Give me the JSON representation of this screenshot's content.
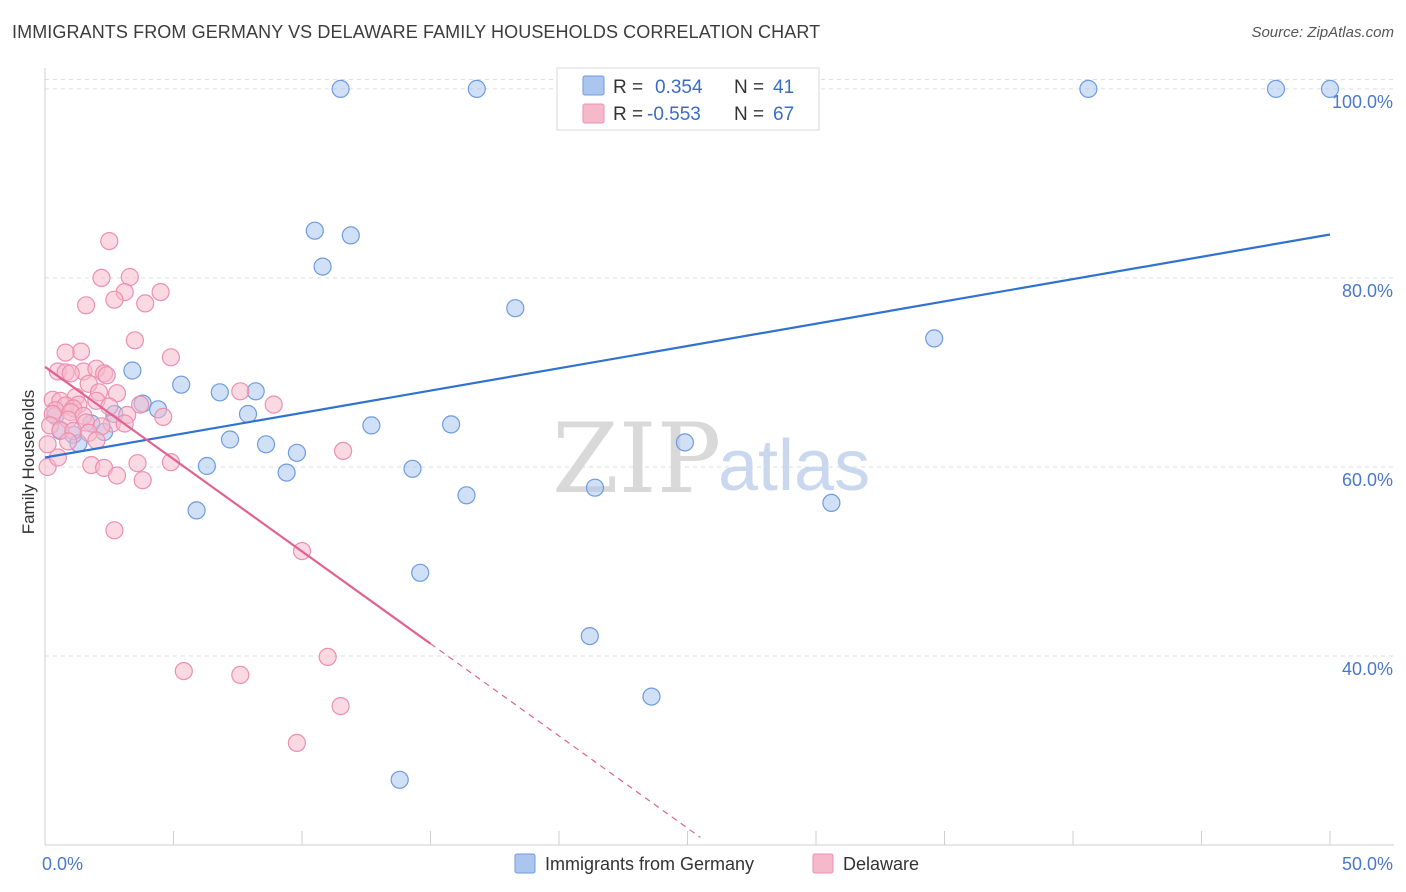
{
  "title": "IMMIGRANTS FROM GERMANY VS DELAWARE FAMILY HOUSEHOLDS CORRELATION CHART",
  "source": "Source: ZipAtlas.com",
  "watermark": {
    "part1": "ZIP",
    "part2": "atlas"
  },
  "colors": {
    "blue_fill": "#aac6ee",
    "blue_stroke": "#6f9be0",
    "blue_line": "#2f72d0",
    "pink_fill": "#f6b9cc",
    "pink_stroke": "#ec8fb0",
    "pink_line": "#e0628f",
    "grid": "#dddddd",
    "axis_label": "#4a78c9"
  },
  "legend": {
    "rows": [
      {
        "r_label": "R =",
        "r_value": "0.354",
        "n_label": "N =",
        "n_value": "41"
      },
      {
        "r_label": "R =",
        "r_value": "-0.553",
        "n_label": "N =",
        "n_value": "67"
      }
    ]
  },
  "bottom_legend": [
    "Immigrants from Germany",
    "Delaware"
  ],
  "chart_data": {
    "type": "scatter",
    "xlabel": "",
    "ylabel": "Family Households",
    "xlim": [
      0,
      50
    ],
    "ylim": [
      20,
      102
    ],
    "x_tick_labels": [
      "0.0%",
      "50.0%"
    ],
    "y_ticks": [
      40,
      60,
      80,
      100
    ],
    "y_tick_labels": [
      "40.0%",
      "60.0%",
      "80.0%",
      "100.0%"
    ],
    "grid": true,
    "legend_position": "top-center",
    "series": [
      {
        "name": "Immigrants from Germany",
        "color": "#aac6ee",
        "points": [
          [
            11.5,
            100
          ],
          [
            16.8,
            100
          ],
          [
            40.6,
            100
          ],
          [
            47.9,
            100
          ],
          [
            50.0,
            100
          ],
          [
            10.5,
            85.0
          ],
          [
            11.9,
            84.5
          ],
          [
            10.8,
            81.2
          ],
          [
            18.3,
            76.8
          ],
          [
            34.6,
            73.6
          ],
          [
            3.4,
            70.2
          ],
          [
            5.3,
            68.7
          ],
          [
            6.8,
            67.9
          ],
          [
            8.2,
            68.0
          ],
          [
            3.8,
            66.7
          ],
          [
            4.4,
            66.1
          ],
          [
            7.9,
            65.6
          ],
          [
            12.7,
            64.4
          ],
          [
            15.8,
            64.5
          ],
          [
            2.7,
            65.6
          ],
          [
            1.8,
            64.6
          ],
          [
            0.6,
            63.8
          ],
          [
            1.1,
            63.4
          ],
          [
            2.3,
            63.7
          ],
          [
            7.2,
            62.9
          ],
          [
            8.6,
            62.4
          ],
          [
            9.8,
            61.5
          ],
          [
            24.9,
            62.6
          ],
          [
            6.3,
            60.1
          ],
          [
            9.4,
            59.4
          ],
          [
            14.3,
            59.8
          ],
          [
            5.9,
            55.4
          ],
          [
            16.4,
            57.0
          ],
          [
            21.4,
            57.8
          ],
          [
            30.6,
            56.2
          ],
          [
            14.6,
            48.8
          ],
          [
            21.2,
            42.1
          ],
          [
            23.6,
            35.7
          ],
          [
            13.8,
            26.9
          ],
          [
            0.4,
            65.4
          ],
          [
            1.3,
            62.5
          ]
        ]
      },
      {
        "name": "Delaware",
        "color": "#f6b9cc",
        "points": [
          [
            2.5,
            83.9
          ],
          [
            2.2,
            80.0
          ],
          [
            3.3,
            80.1
          ],
          [
            3.1,
            78.5
          ],
          [
            4.5,
            78.5
          ],
          [
            1.6,
            77.1
          ],
          [
            2.7,
            77.7
          ],
          [
            3.9,
            77.3
          ],
          [
            3.5,
            73.4
          ],
          [
            1.4,
            72.2
          ],
          [
            0.8,
            72.1
          ],
          [
            4.9,
            71.6
          ],
          [
            0.5,
            70.1
          ],
          [
            0.8,
            70.0
          ],
          [
            1.5,
            70.1
          ],
          [
            2.0,
            70.4
          ],
          [
            2.3,
            69.9
          ],
          [
            2.4,
            69.7
          ],
          [
            1.7,
            68.8
          ],
          [
            2.1,
            67.9
          ],
          [
            7.6,
            68.0
          ],
          [
            0.3,
            67.1
          ],
          [
            0.6,
            67.0
          ],
          [
            1.2,
            67.4
          ],
          [
            2.8,
            67.8
          ],
          [
            2.0,
            67.0
          ],
          [
            1.3,
            66.6
          ],
          [
            0.8,
            66.5
          ],
          [
            1.1,
            66.2
          ],
          [
            0.4,
            66.0
          ],
          [
            2.5,
            66.4
          ],
          [
            3.7,
            66.6
          ],
          [
            8.9,
            66.6
          ],
          [
            0.3,
            65.6
          ],
          [
            1.0,
            65.8
          ],
          [
            1.5,
            65.4
          ],
          [
            3.2,
            65.5
          ],
          [
            0.9,
            65.0
          ],
          [
            1.6,
            64.7
          ],
          [
            2.6,
            64.6
          ],
          [
            2.2,
            64.3
          ],
          [
            3.1,
            64.6
          ],
          [
            0.2,
            64.4
          ],
          [
            0.6,
            63.9
          ],
          [
            1.1,
            63.8
          ],
          [
            1.7,
            63.6
          ],
          [
            2.0,
            62.8
          ],
          [
            0.1,
            62.4
          ],
          [
            0.9,
            62.7
          ],
          [
            1.8,
            60.2
          ],
          [
            2.3,
            59.9
          ],
          [
            3.6,
            60.4
          ],
          [
            4.9,
            60.5
          ],
          [
            11.6,
            61.7
          ],
          [
            0.1,
            60.0
          ],
          [
            2.8,
            59.1
          ],
          [
            3.8,
            58.6
          ],
          [
            2.7,
            53.3
          ],
          [
            10.0,
            51.1
          ],
          [
            5.4,
            38.4
          ],
          [
            7.6,
            38.0
          ],
          [
            11.0,
            39.9
          ],
          [
            11.5,
            34.7
          ],
          [
            9.8,
            30.8
          ],
          [
            1.0,
            69.9
          ],
          [
            0.5,
            61.0
          ],
          [
            4.6,
            65.3
          ]
        ]
      }
    ],
    "trend_lines": [
      {
        "series": "Immigrants from Germany",
        "x": [
          0,
          50
        ],
        "y": [
          61.0,
          84.6
        ],
        "style": "solid"
      },
      {
        "series": "Delaware",
        "x": [
          0,
          15
        ],
        "y": [
          70.6,
          41.3
        ],
        "style": "solid"
      },
      {
        "series": "Delaware",
        "x": [
          15,
          25.5
        ],
        "y": [
          41.3,
          20.8
        ],
        "style": "dashed"
      }
    ]
  }
}
